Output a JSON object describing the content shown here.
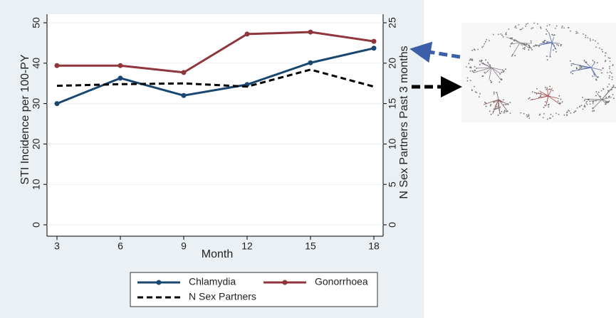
{
  "chart_data": {
    "type": "line",
    "x": [
      3,
      6,
      9,
      12,
      15,
      18
    ],
    "xlim": [
      2.6,
      18.4
    ],
    "xticks": [
      3,
      6,
      9,
      12,
      15,
      18
    ],
    "xlabel": "Month",
    "ylabel": "STI Incidence per 100-PY",
    "y2label": "N Sex Partners Past 3 months",
    "ylim": [
      -2.5,
      52.5
    ],
    "yticks": [
      0,
      10,
      20,
      30,
      40,
      50
    ],
    "y2lim": [
      -1.25,
      26.25
    ],
    "y2ticks": [
      0,
      5,
      10,
      15,
      20,
      25
    ],
    "grid": true,
    "series": [
      {
        "name": "Chlamydia",
        "color": "#1a476f",
        "style": "solid",
        "values": [
          30,
          36.3,
          32,
          34.7,
          40.1,
          43.7
        ]
      },
      {
        "name": "Gonorrhoea",
        "color": "#90353b",
        "style": "solid",
        "values": [
          39.4,
          39.4,
          37.7,
          47.2,
          47.7,
          45.4
        ]
      },
      {
        "name": "N Sex Partners",
        "color": "#000000",
        "style": "dashed",
        "axis": "y2",
        "values": [
          17.2,
          17.4,
          17.5,
          17.1,
          19.2,
          17.1
        ]
      }
    ]
  }
}
